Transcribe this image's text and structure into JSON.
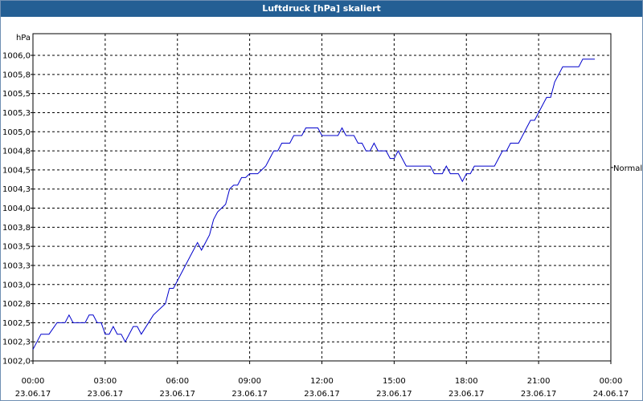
{
  "window": {
    "title": "Luftdruck [hPa] skaliert"
  },
  "chart_data": {
    "type": "line",
    "title": "Luftdruck [hPa] skaliert",
    "ylabel": "hPa",
    "reference_label": "Normal",
    "reference_value": 1004.5,
    "ylim": [
      1002.0,
      1006.0
    ],
    "y_ticks": [
      "1006,0",
      "1005,8",
      "1005,5",
      "1005,3",
      "1005,0",
      "1004,8",
      "1004,5",
      "1004,3",
      "1004,0",
      "1003,8",
      "1003,5",
      "1003,3",
      "1003,0",
      "1002,8",
      "1002,5",
      "1002,3",
      "1002,0"
    ],
    "x_ticks": [
      {
        "time": "00:00",
        "date": "23.06.17"
      },
      {
        "time": "03:00",
        "date": "23.06.17"
      },
      {
        "time": "06:00",
        "date": "23.06.17"
      },
      {
        "time": "09:00",
        "date": "23.06.17"
      },
      {
        "time": "12:00",
        "date": "23.06.17"
      },
      {
        "time": "15:00",
        "date": "23.06.17"
      },
      {
        "time": "18:00",
        "date": "23.06.17"
      },
      {
        "time": "21:00",
        "date": "23.06.17"
      },
      {
        "time": "00:00",
        "date": "24.06.17"
      }
    ],
    "grid": true,
    "series": [
      {
        "color": "#0000cc",
        "points": [
          [
            "23.06.17 00:00",
            1002.15
          ],
          [
            "23.06.17 00:20",
            1002.35
          ],
          [
            "23.06.17 00:40",
            1002.35
          ],
          [
            "23.06.17 01:00",
            1002.5
          ],
          [
            "23.06.17 01:20",
            1002.5
          ],
          [
            "23.06.17 01:30",
            1002.6
          ],
          [
            "23.06.17 01:40",
            1002.5
          ],
          [
            "23.06.17 02:10",
            1002.5
          ],
          [
            "23.06.17 02:20",
            1002.6
          ],
          [
            "23.06.17 02:30",
            1002.6
          ],
          [
            "23.06.17 02:40",
            1002.5
          ],
          [
            "23.06.17 02:50",
            1002.5
          ],
          [
            "23.06.17 03:00",
            1002.35
          ],
          [
            "23.06.17 03:10",
            1002.35
          ],
          [
            "23.06.17 03:20",
            1002.45
          ],
          [
            "23.06.17 03:30",
            1002.35
          ],
          [
            "23.06.17 03:40",
            1002.35
          ],
          [
            "23.06.17 03:50",
            1002.25
          ],
          [
            "23.06.17 04:10",
            1002.45
          ],
          [
            "23.06.17 04:20",
            1002.45
          ],
          [
            "23.06.17 04:30",
            1002.35
          ],
          [
            "23.06.17 05:00",
            1002.6
          ],
          [
            "23.06.17 05:30",
            1002.75
          ],
          [
            "23.06.17 05:40",
            1002.95
          ],
          [
            "23.06.17 05:50",
            1002.95
          ],
          [
            "23.06.17 06:10",
            1003.15
          ],
          [
            "23.06.17 06:30",
            1003.35
          ],
          [
            "23.06.17 06:40",
            1003.45
          ],
          [
            "23.06.17 06:50",
            1003.55
          ],
          [
            "23.06.17 07:00",
            1003.45
          ],
          [
            "23.06.17 07:10",
            1003.55
          ],
          [
            "23.06.17 07:20",
            1003.65
          ],
          [
            "23.06.17 07:30",
            1003.85
          ],
          [
            "23.06.17 07:40",
            1003.95
          ],
          [
            "23.06.17 08:00",
            1004.05
          ],
          [
            "23.06.17 08:10",
            1004.25
          ],
          [
            "23.06.17 08:20",
            1004.3
          ],
          [
            "23.06.17 08:30",
            1004.3
          ],
          [
            "23.06.17 08:40",
            1004.4
          ],
          [
            "23.06.17 08:50",
            1004.4
          ],
          [
            "23.06.17 09:00",
            1004.45
          ],
          [
            "23.06.17 09:20",
            1004.45
          ],
          [
            "23.06.17 09:40",
            1004.55
          ],
          [
            "23.06.17 09:50",
            1004.65
          ],
          [
            "23.06.17 10:00",
            1004.75
          ],
          [
            "23.06.17 10:10",
            1004.75
          ],
          [
            "23.06.17 10:20",
            1004.85
          ],
          [
            "23.06.17 10:40",
            1004.85
          ],
          [
            "23.06.17 10:50",
            1004.95
          ],
          [
            "23.06.17 11:10",
            1004.95
          ],
          [
            "23.06.17 11:20",
            1005.05
          ],
          [
            "23.06.17 11:50",
            1005.05
          ],
          [
            "23.06.17 12:00",
            1004.95
          ],
          [
            "23.06.17 12:40",
            1004.95
          ],
          [
            "23.06.17 12:50",
            1005.05
          ],
          [
            "23.06.17 13:00",
            1004.95
          ],
          [
            "23.06.17 13:20",
            1004.95
          ],
          [
            "23.06.17 13:30",
            1004.85
          ],
          [
            "23.06.17 13:40",
            1004.85
          ],
          [
            "23.06.17 13:50",
            1004.75
          ],
          [
            "23.06.17 14:00",
            1004.75
          ],
          [
            "23.06.17 14:10",
            1004.85
          ],
          [
            "23.06.17 14:20",
            1004.75
          ],
          [
            "23.06.17 14:40",
            1004.75
          ],
          [
            "23.06.17 14:50",
            1004.65
          ],
          [
            "23.06.17 15:00",
            1004.65
          ],
          [
            "23.06.17 15:10",
            1004.75
          ],
          [
            "23.06.17 15:20",
            1004.65
          ],
          [
            "23.06.17 15:30",
            1004.55
          ],
          [
            "23.06.17 16:30",
            1004.55
          ],
          [
            "23.06.17 16:40",
            1004.45
          ],
          [
            "23.06.17 17:00",
            1004.45
          ],
          [
            "23.06.17 17:10",
            1004.55
          ],
          [
            "23.06.17 17:20",
            1004.45
          ],
          [
            "23.06.17 17:40",
            1004.45
          ],
          [
            "23.06.17 17:50",
            1004.35
          ],
          [
            "23.06.17 18:00",
            1004.45
          ],
          [
            "23.06.17 18:10",
            1004.45
          ],
          [
            "23.06.17 18:20",
            1004.55
          ],
          [
            "23.06.17 19:10",
            1004.55
          ],
          [
            "23.06.17 19:30",
            1004.75
          ],
          [
            "23.06.17 19:40",
            1004.75
          ],
          [
            "23.06.17 19:50",
            1004.85
          ],
          [
            "23.06.17 20:10",
            1004.85
          ],
          [
            "23.06.17 20:20",
            1004.95
          ],
          [
            "23.06.17 20:30",
            1005.05
          ],
          [
            "23.06.17 20:40",
            1005.15
          ],
          [
            "23.06.17 20:50",
            1005.15
          ],
          [
            "23.06.17 21:00",
            1005.25
          ],
          [
            "23.06.17 21:10",
            1005.35
          ],
          [
            "23.06.17 21:20",
            1005.45
          ],
          [
            "23.06.17 21:30",
            1005.45
          ],
          [
            "23.06.17 21:40",
            1005.65
          ],
          [
            "23.06.17 21:50",
            1005.75
          ],
          [
            "23.06.17 22:00",
            1005.85
          ],
          [
            "23.06.17 22:40",
            1005.85
          ],
          [
            "23.06.17 22:50",
            1005.95
          ],
          [
            "23.06.17 23:20",
            1005.95
          ]
        ]
      }
    ]
  }
}
